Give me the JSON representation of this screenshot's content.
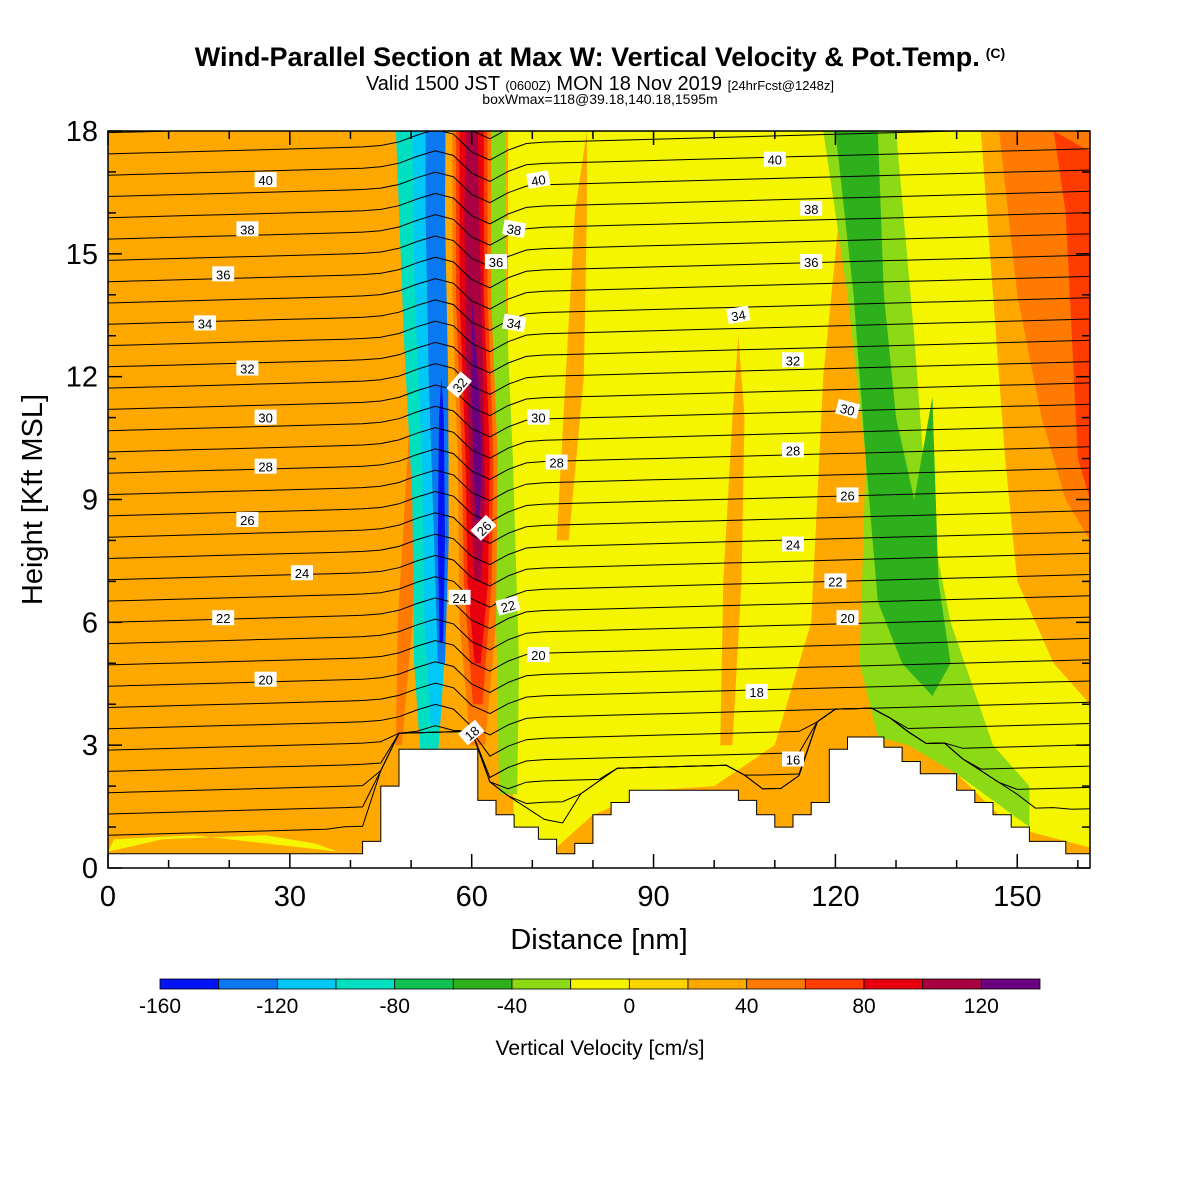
{
  "title": {
    "main": "Wind-Parallel Section at Max W: Vertical Velocity & Pot.Temp.",
    "copyright": "(C)",
    "valid_prefix": "Valid 1500 JST",
    "valid_utc": "(0600Z)",
    "valid_date": "MON 18 Nov 2019",
    "forecast": "[24hrFcst@1248z]",
    "subtitle": "boxWmax=118@39.18,140.18,1595m"
  },
  "chart_data": {
    "type": "heatmap",
    "xlabel": "Distance [nm]",
    "ylabel": "Height [Kft MSL]",
    "xlim": [
      0,
      162
    ],
    "ylim": [
      0,
      18
    ],
    "x_ticks": [
      0,
      30,
      60,
      90,
      120,
      150
    ],
    "y_ticks": [
      0,
      3,
      6,
      9,
      12,
      15,
      18
    ],
    "grid": false,
    "fill_variable": "Vertical Velocity [cm/s]",
    "colorbar": {
      "label": "Vertical Velocity [cm/s]",
      "tick_values": [
        -160,
        -120,
        -80,
        -40,
        0,
        40,
        80,
        120
      ],
      "levels": [
        -160,
        -140,
        -120,
        -100,
        -80,
        -60,
        -40,
        -20,
        0,
        20,
        40,
        60,
        80,
        100,
        120,
        140
      ],
      "colors": [
        "#0014f5",
        "#0a78f0",
        "#00c8f5",
        "#00e0c0",
        "#10c050",
        "#2eb01c",
        "#8cd916",
        "#f5f500",
        "#ffd500",
        "#ffa800",
        "#ff7a00",
        "#ff3c00",
        "#e8000f",
        "#a80040",
        "#6a0080"
      ]
    },
    "background_bin": 1,
    "features": [
      {
        "type": "updraft-core",
        "x_center": 61.5,
        "y_range": [
          4.0,
          18
        ],
        "peak_cms": 118
      },
      {
        "type": "downdraft-core",
        "x_center": 54.5,
        "y_range": [
          3.0,
          18
        ],
        "min_cms": -150
      },
      {
        "type": "updraft-band",
        "x_range": [
          150,
          162
        ],
        "y_range": [
          8,
          18
        ],
        "peak_cms": 70
      },
      {
        "type": "downdraft-band",
        "x_range": [
          120,
          145
        ],
        "y_range": [
          2,
          18
        ],
        "min_cms": -60
      }
    ],
    "terrain_kft": {
      "x": [
        0,
        38,
        42,
        45,
        48,
        58,
        61,
        64,
        67,
        71,
        74,
        77,
        80,
        83,
        86,
        89,
        98,
        104,
        107,
        110,
        113,
        116,
        119,
        122,
        125,
        128,
        131,
        134,
        137,
        140,
        143,
        146,
        149,
        152,
        155,
        158,
        161,
        162
      ],
      "z": [
        0.35,
        0.35,
        0.65,
        2.0,
        2.9,
        2.9,
        1.65,
        1.3,
        1.0,
        0.7,
        0.35,
        0.6,
        1.3,
        1.6,
        1.9,
        1.9,
        1.9,
        1.65,
        1.3,
        1.0,
        1.3,
        1.6,
        2.9,
        3.2,
        3.2,
        2.95,
        2.6,
        2.3,
        2.3,
        1.9,
        1.6,
        1.3,
        1.0,
        0.65,
        0.65,
        0.35,
        0.35,
        0.35
      ]
    },
    "theta_contour_labels": [
      {
        "value": "16",
        "x": 113,
        "y": 2.65
      },
      {
        "value": "18",
        "x": 60,
        "y": 3.3,
        "rotate": -40
      },
      {
        "value": "18",
        "x": 107,
        "y": 4.3
      },
      {
        "value": "20",
        "x": 26,
        "y": 4.6
      },
      {
        "value": "20",
        "x": 71,
        "y": 5.2
      },
      {
        "value": "20",
        "x": 122,
        "y": 6.1
      },
      {
        "value": "22",
        "x": 19,
        "y": 6.1
      },
      {
        "value": "22",
        "x": 66,
        "y": 6.4,
        "rotate": -15
      },
      {
        "value": "22",
        "x": 120,
        "y": 7.0
      },
      {
        "value": "24",
        "x": 32,
        "y": 7.2
      },
      {
        "value": "24",
        "x": 58,
        "y": 6.6
      },
      {
        "value": "24",
        "x": 113,
        "y": 7.9
      },
      {
        "value": "26",
        "x": 23,
        "y": 8.5
      },
      {
        "value": "26",
        "x": 62,
        "y": 8.3,
        "rotate": -45
      },
      {
        "value": "26",
        "x": 122,
        "y": 9.1
      },
      {
        "value": "28",
        "x": 26,
        "y": 9.8
      },
      {
        "value": "28",
        "x": 74,
        "y": 9.9
      },
      {
        "value": "28",
        "x": 113,
        "y": 10.2
      },
      {
        "value": "30",
        "x": 26,
        "y": 11.0
      },
      {
        "value": "30",
        "x": 71,
        "y": 11.0
      },
      {
        "value": "30",
        "x": 122,
        "y": 11.2,
        "rotate": 15
      },
      {
        "value": "32",
        "x": 23,
        "y": 12.2
      },
      {
        "value": "32",
        "x": 58,
        "y": 11.8,
        "rotate": -50
      },
      {
        "value": "32",
        "x": 113,
        "y": 12.4
      },
      {
        "value": "34",
        "x": 16,
        "y": 13.3
      },
      {
        "value": "34",
        "x": 67,
        "y": 13.3,
        "rotate": 10
      },
      {
        "value": "34",
        "x": 104,
        "y": 13.5,
        "rotate": -10
      },
      {
        "value": "36",
        "x": 19,
        "y": 14.5
      },
      {
        "value": "36",
        "x": 64,
        "y": 14.8
      },
      {
        "value": "36",
        "x": 116,
        "y": 14.8
      },
      {
        "value": "38",
        "x": 23,
        "y": 15.6
      },
      {
        "value": "38",
        "x": 67,
        "y": 15.6,
        "rotate": 10
      },
      {
        "value": "38",
        "x": 116,
        "y": 16.1
      },
      {
        "value": "40",
        "x": 26,
        "y": 16.8
      },
      {
        "value": "40",
        "x": 71,
        "y": 16.8,
        "rotate": -10
      },
      {
        "value": "40",
        "x": 110,
        "y": 17.3
      }
    ]
  }
}
